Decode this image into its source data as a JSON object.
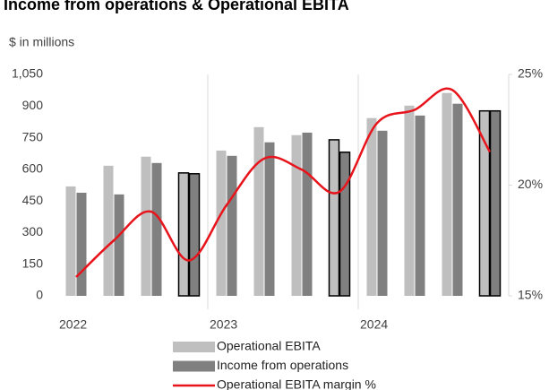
{
  "chart_data": {
    "type": "bar_line",
    "title": "Income from operations & Operational EBITA",
    "ylabel": "$ in millions",
    "categories": [
      "2022",
      null,
      null,
      null,
      "2023",
      null,
      null,
      null,
      "2024",
      null,
      null,
      null
    ],
    "series": [
      {
        "name": "Operational EBITA",
        "color": "#bfbfbf",
        "values": [
          519,
          617,
          660,
          583,
          689,
          800,
          762,
          740,
          843,
          902,
          962,
          877
        ]
      },
      {
        "name": "Income from operations",
        "color": "#808080",
        "values": [
          489,
          481,
          630,
          579,
          664,
          728,
          774,
          681,
          783,
          855,
          911,
          877
        ]
      },
      {
        "name": "Operational EBITA margin %",
        "color": "#e8141c",
        "axis": "y2",
        "type": "line",
        "values": [
          15.85,
          17.5,
          18.8,
          16.6,
          19.1,
          21.2,
          20.7,
          19.7,
          22.8,
          23.4,
          24.3,
          21.5
        ]
      }
    ],
    "ylim": [
      0,
      1050
    ],
    "yticks": [
      0,
      150,
      300,
      450,
      600,
      750,
      900,
      {
        "value": 1050,
        "label": "1,050"
      }
    ],
    "y2lim": [
      15,
      25
    ],
    "y2ticks": [
      {
        "value": 15,
        "label": "15%"
      },
      {
        "value": 20,
        "label": "20%"
      },
      {
        "value": 25,
        "label": "25%"
      }
    ],
    "outlined": [
      3,
      7,
      11
    ],
    "outline_color": "#000000",
    "grid": false
  }
}
